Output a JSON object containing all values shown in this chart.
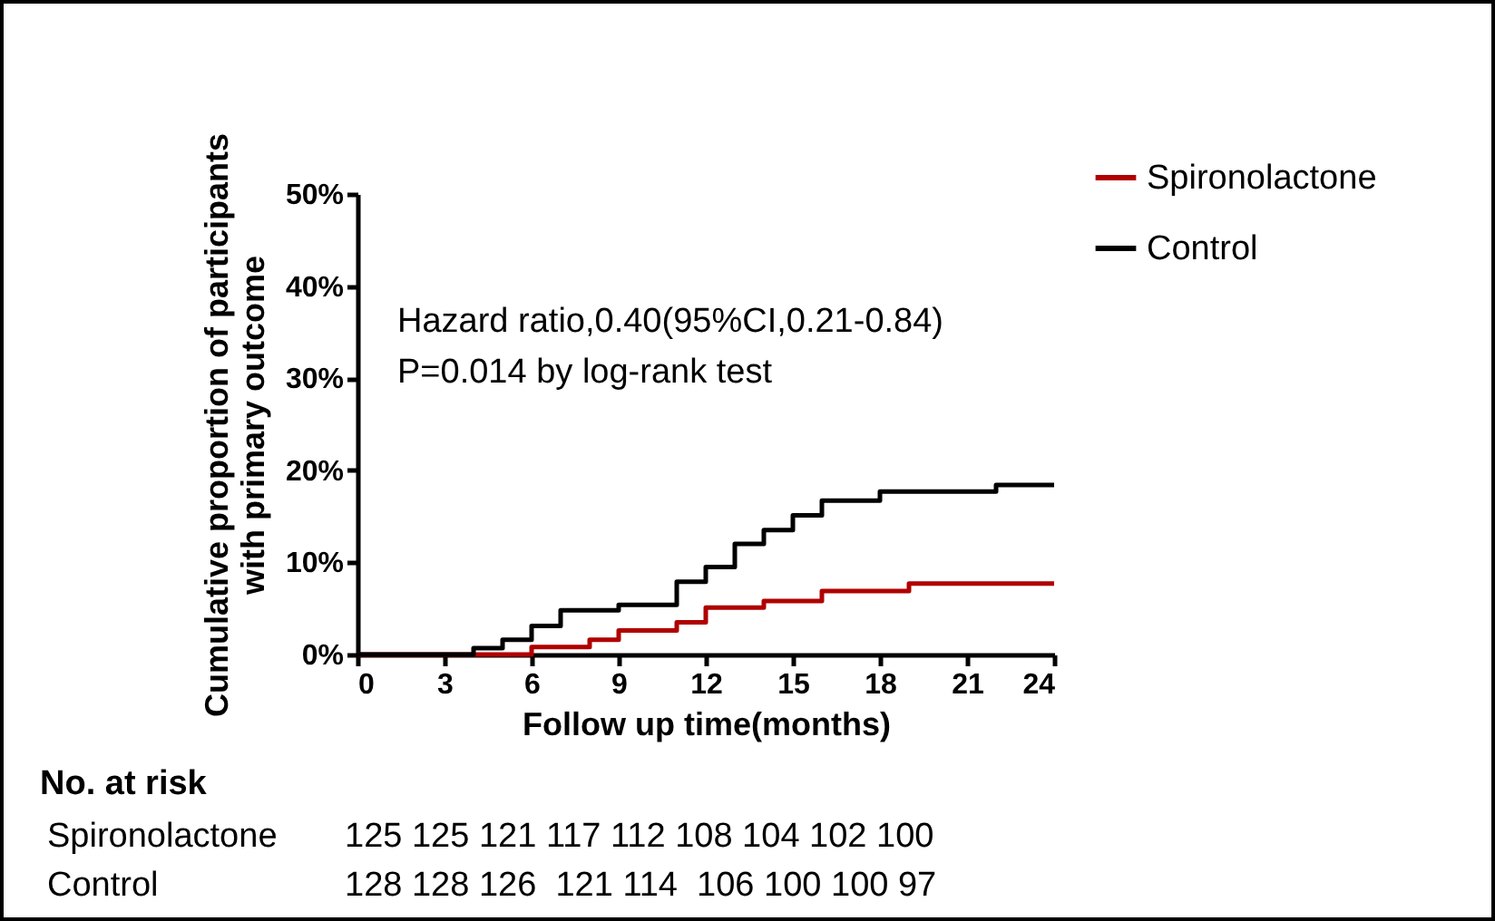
{
  "chart_data": {
    "type": "step",
    "xlabel": "Follow up time(months)",
    "ylabel": "Cumulative proportion of participants\nwith primary outcome",
    "xlim": [
      0,
      24
    ],
    "xticks": [
      0,
      3,
      6,
      9,
      12,
      15,
      18,
      21,
      24
    ],
    "ylim": [
      0,
      50
    ],
    "yticks": [
      {
        "value": 0,
        "label": "0%"
      },
      {
        "value": 10,
        "label": "10%"
      },
      {
        "value": 20,
        "label": "20%"
      },
      {
        "value": 30,
        "label": "30%"
      },
      {
        "value": 40,
        "label": "40%"
      },
      {
        "value": 50,
        "label": "50%"
      }
    ],
    "grid": false,
    "legend": "top right",
    "marker": "none",
    "line_style": "solid",
    "series": [
      {
        "name": "Spironolactone",
        "color": "#b00000",
        "x": [
          0,
          6,
          8,
          9,
          11,
          12,
          14,
          16,
          19,
          24
        ],
        "values": [
          0,
          0.8,
          1.6,
          2.6,
          3.5,
          5.1,
          5.8,
          6.9,
          7.7,
          7.7
        ]
      },
      {
        "name": "Control",
        "color": "#000000",
        "x": [
          0,
          4,
          5,
          6,
          7,
          9,
          11,
          12,
          13,
          14,
          15,
          16,
          18,
          22,
          24
        ],
        "values": [
          0,
          0.7,
          1.6,
          3.1,
          4.8,
          5.4,
          7.9,
          9.5,
          12.0,
          13.5,
          15.1,
          16.7,
          17.7,
          18.4,
          18.4
        ]
      }
    ],
    "annotations": [
      "Hazard ratio,0.40(95%CI,0.21-0.84)",
      "P=0.014 by log-rank test",
      "No. at risk",
      "Spironolactone",
      "125 125 121 117 112 108 104 102 100",
      "Control",
      "128 128 126  121 114  106 100 100 97"
    ]
  }
}
